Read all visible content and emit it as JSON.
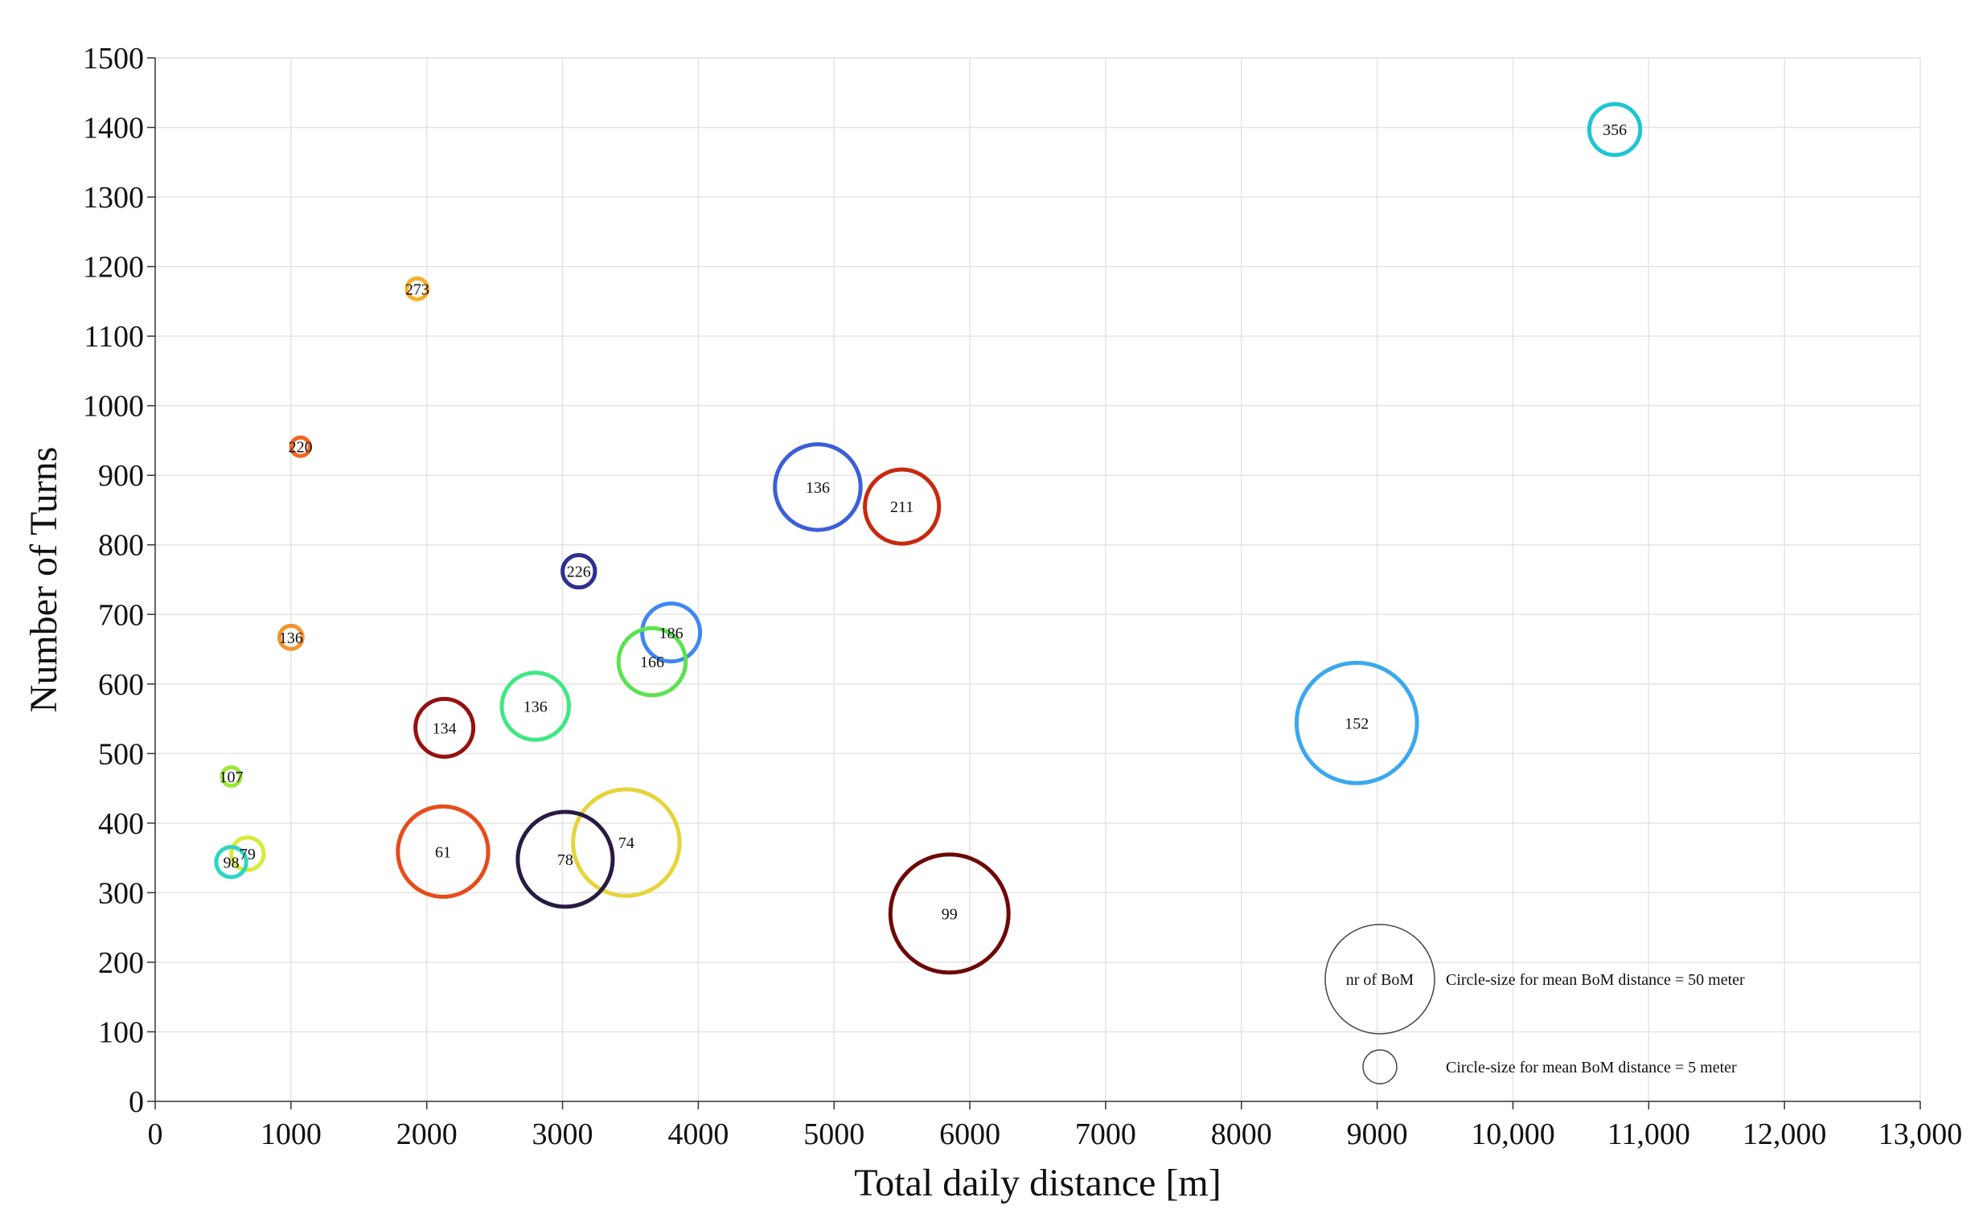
{
  "chart_data": {
    "type": "scatter",
    "subtype": "bubble",
    "title": "",
    "xlabel": "Total daily distance [m]",
    "ylabel": "Number of Turns",
    "xlim": [
      0,
      13000
    ],
    "ylim": [
      0,
      1500
    ],
    "grid": true,
    "x_ticks": [
      0,
      1000,
      2000,
      3000,
      4000,
      5000,
      6000,
      7000,
      8000,
      9000,
      10000,
      11000,
      12000,
      13000
    ],
    "x_tick_labels": [
      "0",
      "1000",
      "2000",
      "3000",
      "4000",
      "5000",
      "6000",
      "7000",
      "8000",
      "9000",
      "10,000",
      "11,000",
      "12,000",
      "13,000"
    ],
    "y_ticks": [
      0,
      100,
      200,
      300,
      400,
      500,
      600,
      700,
      800,
      900,
      1000,
      1100,
      1200,
      1300,
      1400,
      1500
    ],
    "y_tick_labels": [
      "0",
      "100",
      "200",
      "300",
      "400",
      "500",
      "600",
      "700",
      "800",
      "900",
      "1000",
      "1100",
      "1200",
      "1300",
      "1400",
      "1500"
    ],
    "size_variable": "mean BoM distance [m]",
    "label_variable": "nr of BoM",
    "points": [
      {
        "x": 10750,
        "y": 1397,
        "label": "356",
        "size": 22,
        "color": "#1ec6d2"
      },
      {
        "x": 1930,
        "y": 1168,
        "label": "273",
        "size": 9,
        "color": "#f7b02c"
      },
      {
        "x": 1070,
        "y": 941,
        "label": "220",
        "size": 8,
        "color": "#f26522"
      },
      {
        "x": 4880,
        "y": 883,
        "label": "136",
        "size": 37,
        "color": "#3c5ed8"
      },
      {
        "x": 5500,
        "y": 855,
        "label": "211",
        "size": 32,
        "color": "#c7290e"
      },
      {
        "x": 3120,
        "y": 762,
        "label": "226",
        "size": 14,
        "color": "#2e2f8f"
      },
      {
        "x": 3800,
        "y": 674,
        "label": "186",
        "size": 25,
        "color": "#3f87f2"
      },
      {
        "x": 1000,
        "y": 667,
        "label": "136",
        "size": 10,
        "color": "#f59430"
      },
      {
        "x": 3660,
        "y": 632,
        "label": "166",
        "size": 29,
        "color": "#5ce24f"
      },
      {
        "x": 2800,
        "y": 568,
        "label": "136",
        "size": 29,
        "color": "#3fe884"
      },
      {
        "x": 8850,
        "y": 544,
        "label": "152",
        "size": 52,
        "color": "#3aa8ee"
      },
      {
        "x": 2130,
        "y": 537,
        "label": "134",
        "size": 25,
        "color": "#961010"
      },
      {
        "x": 560,
        "y": 467,
        "label": "107",
        "size": 8,
        "color": "#9ee63a"
      },
      {
        "x": 3470,
        "y": 372,
        "label": "74",
        "size": 46,
        "color": "#e6d43a"
      },
      {
        "x": 2120,
        "y": 359,
        "label": "61",
        "size": 39,
        "color": "#e84c1a"
      },
      {
        "x": 3020,
        "y": 348,
        "label": "78",
        "size": 41,
        "color": "#2a1a42"
      },
      {
        "x": 680,
        "y": 356,
        "label": "79",
        "size": 14,
        "color": "#d8ea3a"
      },
      {
        "x": 560,
        "y": 344,
        "label": "98",
        "size": 13,
        "color": "#2cd6c4"
      },
      {
        "x": 5850,
        "y": 270,
        "label": "99",
        "size": 51,
        "color": "#6e0808"
      }
    ],
    "legend": {
      "placement": "bottom-right",
      "items": [
        {
          "size": 50,
          "circle_text": "nr of BoM",
          "text": "Circle-size for mean BoM distance = 50 meter"
        },
        {
          "size": 5,
          "circle_text": "",
          "text": "Circle-size for mean BoM distance = 5 meter"
        }
      ]
    }
  }
}
